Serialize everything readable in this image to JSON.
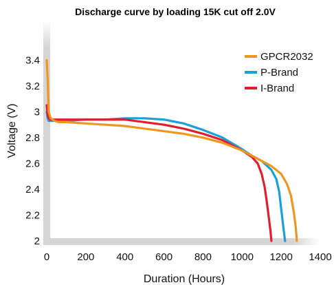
{
  "chart_data": {
    "type": "line",
    "title": "Discharge curve by loading 15K cut off 2.0V",
    "xlabel": "Duration (Hours)",
    "ylabel": "Voltage (V)",
    "xlim": [
      0,
      1400
    ],
    "ylim": [
      2,
      3.5
    ],
    "x_ticks": [
      "0",
      "200",
      "400",
      "600",
      "800",
      "1000",
      "1200",
      "1400"
    ],
    "y_ticks": [
      "2",
      "2.2",
      "2.4",
      "2.6",
      "2.8",
      "3",
      "3.2",
      "3.4"
    ],
    "x_tick_values": [
      0,
      200,
      400,
      600,
      800,
      1000,
      1200,
      1400
    ],
    "y_tick_values": [
      2,
      2.2,
      2.4,
      2.6,
      2.8,
      3,
      3.2,
      3.4
    ],
    "grid": false,
    "legend_position": "top-right",
    "series": [
      {
        "name": "GPCR2032",
        "color": "#F0961E",
        "x": [
          0,
          5,
          10,
          20,
          40,
          60,
          100,
          200,
          300,
          400,
          500,
          600,
          700,
          800,
          900,
          1000,
          1050,
          1100,
          1150,
          1200,
          1230,
          1250,
          1265,
          1275,
          1280
        ],
        "y": [
          3.4,
          3.25,
          3.0,
          2.95,
          2.93,
          2.92,
          2.92,
          2.91,
          2.9,
          2.89,
          2.87,
          2.85,
          2.83,
          2.8,
          2.76,
          2.7,
          2.66,
          2.62,
          2.58,
          2.52,
          2.44,
          2.35,
          2.22,
          2.1,
          2.0
        ]
      },
      {
        "name": "P-Brand",
        "color": "#19A0DC",
        "x": [
          0,
          5,
          10,
          20,
          40,
          100,
          200,
          300,
          400,
          500,
          600,
          700,
          800,
          900,
          1000,
          1050,
          1100,
          1150,
          1175,
          1190,
          1200,
          1210,
          1220
        ],
        "y": [
          3.0,
          2.95,
          2.93,
          2.93,
          2.93,
          2.93,
          2.94,
          2.94,
          2.95,
          2.95,
          2.94,
          2.91,
          2.86,
          2.8,
          2.71,
          2.66,
          2.62,
          2.55,
          2.48,
          2.38,
          2.25,
          2.12,
          2.0
        ]
      },
      {
        "name": "I-Brand",
        "color": "#E01E2D",
        "x": [
          0,
          5,
          10,
          20,
          40,
          100,
          200,
          300,
          400,
          500,
          600,
          700,
          800,
          900,
          1000,
          1050,
          1080,
          1100,
          1115,
          1125,
          1135,
          1145,
          1150
        ],
        "y": [
          3.05,
          2.97,
          2.95,
          2.94,
          2.94,
          2.94,
          2.94,
          2.94,
          2.94,
          2.92,
          2.9,
          2.87,
          2.83,
          2.78,
          2.7,
          2.65,
          2.6,
          2.52,
          2.42,
          2.32,
          2.2,
          2.08,
          2.0
        ]
      }
    ]
  }
}
